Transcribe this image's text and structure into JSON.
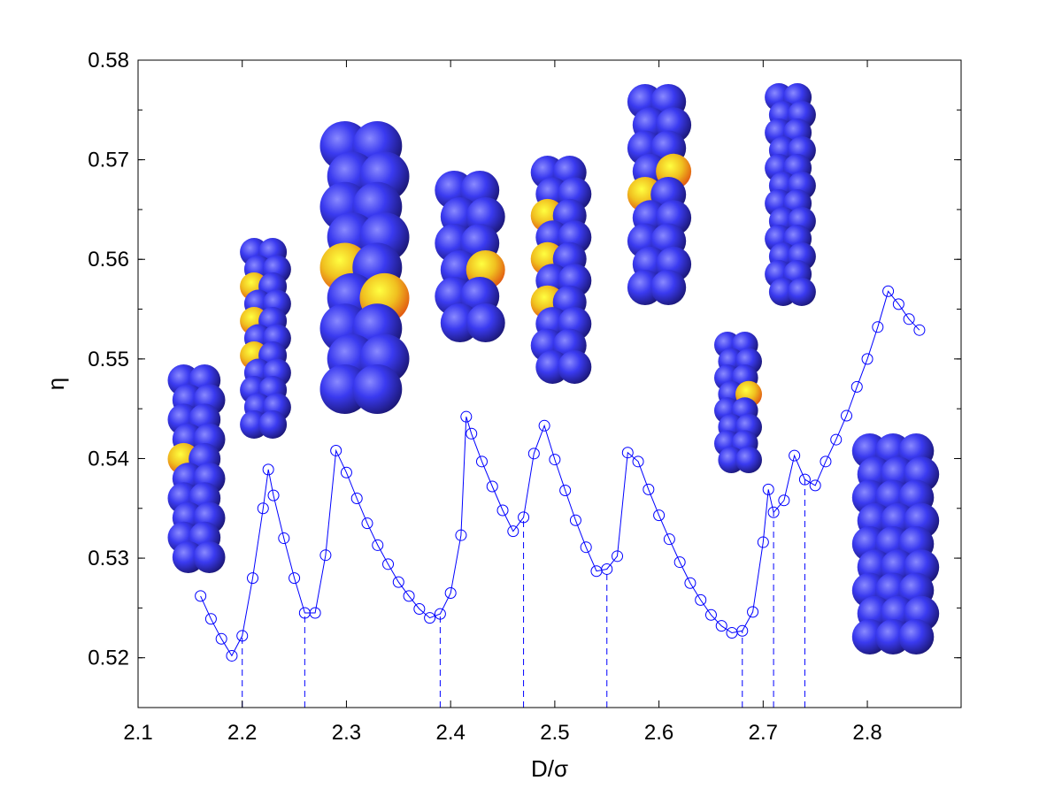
{
  "chart_data": {
    "type": "line",
    "title": "",
    "xlabel": "D/σ",
    "ylabel": "η",
    "xlim": [
      2.1,
      2.89
    ],
    "ylim": [
      0.515,
      0.58
    ],
    "xticks": [
      "2.1",
      "2.2",
      "2.3",
      "2.4",
      "2.5",
      "2.6",
      "2.7",
      "2.8"
    ],
    "yticks": [
      "0.52",
      "0.53",
      "0.54",
      "0.55",
      "0.56",
      "0.57",
      "0.58"
    ],
    "grid": false,
    "legend": "none",
    "series_color": "#0000ff",
    "marker": "open-circle",
    "series": [
      {
        "x": [
          2.16,
          2.17,
          2.18,
          2.19,
          2.2,
          2.21,
          2.22,
          2.225,
          2.23,
          2.24,
          2.25,
          2.26,
          2.27,
          2.28,
          2.29,
          2.3,
          2.31,
          2.32,
          2.33,
          2.34,
          2.35,
          2.36,
          2.37,
          2.38,
          2.39,
          2.4,
          2.41,
          2.415,
          2.42,
          2.43,
          2.44,
          2.45,
          2.46,
          2.47,
          2.48,
          2.49,
          2.5,
          2.51,
          2.52,
          2.53,
          2.54,
          2.55,
          2.56,
          2.57,
          2.58,
          2.59,
          2.6,
          2.61,
          2.62,
          2.63,
          2.64,
          2.65,
          2.66,
          2.67,
          2.68,
          2.69,
          2.7,
          2.705,
          2.71,
          2.72,
          2.73,
          2.74,
          2.75,
          2.76,
          2.77,
          2.78,
          2.79,
          2.8,
          2.81,
          2.82,
          2.83,
          2.84,
          2.85
        ],
        "y": [
          0.5262,
          0.5239,
          0.5219,
          0.5202,
          0.5222,
          0.528,
          0.535,
          0.5389,
          0.5363,
          0.532,
          0.528,
          0.5245,
          0.5245,
          0.5303,
          0.5408,
          0.5386,
          0.536,
          0.5335,
          0.5313,
          0.5294,
          0.5276,
          0.5262,
          0.5249,
          0.524,
          0.5244,
          0.5265,
          0.5323,
          0.5442,
          0.5425,
          0.5397,
          0.5372,
          0.5348,
          0.5327,
          0.5341,
          0.5405,
          0.5433,
          0.5399,
          0.5368,
          0.5338,
          0.5311,
          0.5287,
          0.5289,
          0.5302,
          0.5406,
          0.5397,
          0.5369,
          0.5343,
          0.5319,
          0.5296,
          0.5275,
          0.5258,
          0.5243,
          0.5232,
          0.5225,
          0.5227,
          0.5246,
          0.5316,
          0.5369,
          0.5346,
          0.5358,
          0.5403,
          0.5379,
          0.5373,
          0.5397,
          0.5419,
          0.5443,
          0.5472,
          0.55,
          0.5532,
          0.5568,
          0.5555,
          0.554,
          0.5529
        ]
      }
    ],
    "transitions_x": [
      2.2,
      2.26,
      2.39,
      2.47,
      2.55,
      2.68,
      2.71,
      2.74
    ]
  },
  "colors": {
    "sphere_blue": "#3030e6",
    "sphere_highlight": "#f2e020",
    "sphere_orange": "#e87010",
    "axis": "#000000"
  }
}
